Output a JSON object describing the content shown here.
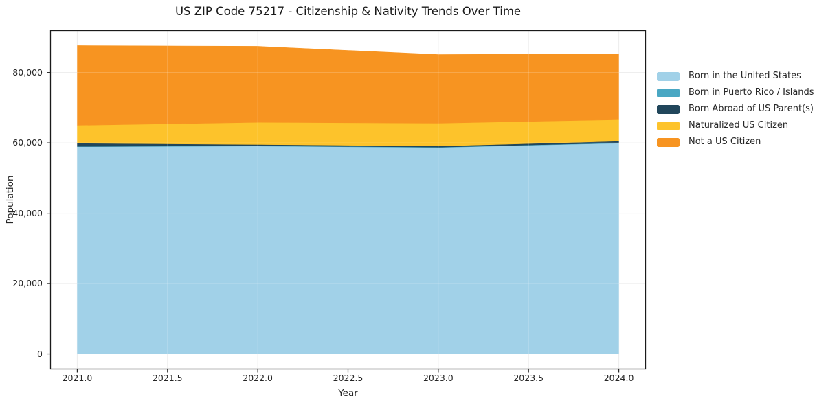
{
  "chart_data": {
    "type": "area",
    "stacked": true,
    "title": "US ZIP Code 75217 - Citizenship & Nativity Trends Over Time",
    "xlabel": "Year",
    "ylabel": "Population",
    "x": [
      2021,
      2022,
      2023,
      2024
    ],
    "series": [
      {
        "name": "Born in the United States",
        "color": "#A1D1E8",
        "values": [
          58900,
          59100,
          58700,
          59900
        ]
      },
      {
        "name": "Born in Puerto Rico / Islands",
        "color": "#49A7C3",
        "values": [
          100,
          100,
          100,
          100
        ]
      },
      {
        "name": "Born Abroad of US Parent(s)",
        "color": "#21465B",
        "values": [
          900,
          350,
          300,
          500
        ]
      },
      {
        "name": "Naturalized US Citizen",
        "color": "#FDC32B",
        "values": [
          5100,
          6300,
          6500,
          6100
        ]
      },
      {
        "name": "Not a US Citizen",
        "color": "#F79421",
        "values": [
          22650,
          21600,
          19500,
          18700
        ]
      }
    ],
    "stack_totals": [
      87650,
      87450,
      85100,
      85300
    ],
    "xlim": [
      2020.85,
      2024.15
    ],
    "ylim": [
      -4383,
      92033
    ],
    "xticks": [
      2021.0,
      2021.5,
      2022.0,
      2022.5,
      2023.0,
      2023.5,
      2024.0
    ],
    "xtick_labels": [
      "2021.0",
      "2021.5",
      "2022.0",
      "2022.5",
      "2023.0",
      "2023.5",
      "2024.0"
    ],
    "yticks": [
      0,
      20000,
      40000,
      60000,
      80000
    ],
    "ytick_labels": [
      "0",
      "20,000",
      "40,000",
      "60,000",
      "80,000"
    ],
    "grid": true,
    "legend_position": "right of axes, no frame",
    "colors": {
      "background": "#ffffff",
      "grid": "#e8e8e8",
      "grid_over_fill": "rgba(255,255,255,0.22)",
      "frame": "#1a1a1a",
      "tick": "#262626",
      "text": "#262626",
      "title": "#1a1a1a"
    }
  }
}
